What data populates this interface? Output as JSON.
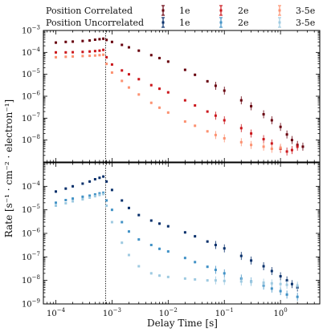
{
  "chart_data": {
    "type": "scatter",
    "xlabel": "Delay Time [s]",
    "ylabel": "Rate [s⁻¹ · cm⁻² · electron⁻¹]",
    "x_scale": "log",
    "y_scale": "log",
    "xlim": [
      6e-05,
      5
    ],
    "vline_x": 0.00077,
    "legend": {
      "placement": "top",
      "row_labels": [
        "Position Correlated",
        "Position Uncorrelated"
      ],
      "column_labels": [
        "1e",
        "2e",
        "3-5e"
      ]
    },
    "x_ticks": [
      {
        "value": 0.0001,
        "base": "10",
        "exp": "−4"
      },
      {
        "value": 0.001,
        "base": "10",
        "exp": "−3"
      },
      {
        "value": 0.01,
        "base": "10",
        "exp": "−2"
      },
      {
        "value": 0.1,
        "base": "10",
        "exp": "−1"
      },
      {
        "value": 1,
        "base": "10",
        "exp": "0"
      }
    ],
    "panels": [
      {
        "name": "Position Correlated",
        "ylim": [
          1e-09,
          0.001
        ],
        "y_ticks": [
          {
            "value": 0.001,
            "base": "10",
            "exp": "−3"
          },
          {
            "value": 0.0001,
            "base": "10",
            "exp": "−4"
          },
          {
            "value": 1e-05,
            "base": "10",
            "exp": "−5"
          },
          {
            "value": 1e-06,
            "base": "10",
            "exp": "−6"
          },
          {
            "value": 1e-07,
            "base": "10",
            "exp": "−7"
          },
          {
            "value": 1e-08,
            "base": "10",
            "exp": "−8"
          }
        ],
        "series": [
          {
            "name": "1e",
            "color": "#67000d",
            "points": [
              [
                0.0001,
                0.00028
              ],
              [
                0.00015,
                0.0003
              ],
              [
                0.0002,
                0.00031
              ],
              [
                0.0003,
                0.00033
              ],
              [
                0.0004,
                0.00035
              ],
              [
                0.0005,
                0.00038
              ],
              [
                0.0006,
                0.0004
              ],
              [
                0.0007,
                0.00042
              ],
              [
                0.0008,
                0.00037
              ],
              [
                0.001,
                0.0003
              ],
              [
                0.0015,
                0.00022
              ],
              [
                0.002,
                0.00017
              ],
              [
                0.003,
                0.00012
              ],
              [
                0.005,
                7.5e-05
              ],
              [
                0.007,
                5.5e-05
              ],
              [
                0.01,
                3.8e-05
              ],
              [
                0.02,
                1.6e-05
              ],
              [
                0.03,
                9.5e-06
              ],
              [
                0.05,
                4.8e-06
              ],
              [
                0.07,
                3e-06
              ],
              [
                0.1,
                1.8e-06
              ],
              [
                0.2,
                6.5e-07
              ],
              [
                0.3,
                3.5e-07
              ],
              [
                0.5,
                1.5e-07
              ],
              [
                0.7,
                8e-08
              ],
              [
                1.0,
                4e-08
              ],
              [
                1.3,
                1.8e-08
              ],
              [
                1.6,
                1e-08
              ],
              [
                2.0,
                6e-09
              ],
              [
                2.5,
                5e-09
              ]
            ]
          },
          {
            "name": "2e",
            "color": "#cb181d",
            "points": [
              [
                0.0001,
                0.0001
              ],
              [
                0.00015,
                0.0001
              ],
              [
                0.0002,
                0.000102
              ],
              [
                0.0003,
                0.000105
              ],
              [
                0.0004,
                0.00011
              ],
              [
                0.0005,
                0.000115
              ],
              [
                0.0006,
                0.00012
              ],
              [
                0.0007,
                0.00013
              ],
              [
                0.0008,
                6e-05
              ],
              [
                0.001,
                2.8e-05
              ],
              [
                0.0015,
                1.5e-05
              ],
              [
                0.002,
                1e-05
              ],
              [
                0.003,
                6e-06
              ],
              [
                0.005,
                3.2e-06
              ],
              [
                0.007,
                2.2e-06
              ],
              [
                0.01,
                1.5e-06
              ],
              [
                0.02,
                6.5e-07
              ],
              [
                0.03,
                3.8e-07
              ],
              [
                0.05,
                2e-07
              ],
              [
                0.07,
                1.3e-07
              ],
              [
                0.1,
                8e-08
              ],
              [
                0.2,
                3.5e-08
              ],
              [
                0.3,
                2e-08
              ],
              [
                0.5,
                1.1e-08
              ],
              [
                0.7,
                7e-09
              ],
              [
                1.0,
                4e-09
              ],
              [
                1.3,
                3e-09
              ],
              [
                1.6,
                3.5e-09
              ],
              [
                2.0,
                5e-09
              ]
            ]
          },
          {
            "name": "3-5e",
            "color": "#fc9272",
            "points": [
              [
                0.0001,
                6e-05
              ],
              [
                0.00015,
                6.3e-05
              ],
              [
                0.0002,
                6.5e-05
              ],
              [
                0.0003,
                6.8e-05
              ],
              [
                0.0004,
                7e-05
              ],
              [
                0.0005,
                7.2e-05
              ],
              [
                0.0006,
                7.5e-05
              ],
              [
                0.0007,
                7.8e-05
              ],
              [
                0.0008,
                3e-05
              ],
              [
                0.001,
                1.2e-05
              ],
              [
                0.0015,
                5e-06
              ],
              [
                0.002,
                2.5e-06
              ],
              [
                0.003,
                1.2e-06
              ],
              [
                0.005,
                5e-07
              ],
              [
                0.007,
                3e-07
              ],
              [
                0.01,
                1.8e-07
              ],
              [
                0.02,
                7e-08
              ],
              [
                0.03,
                4.5e-08
              ],
              [
                0.05,
                2.5e-08
              ],
              [
                0.07,
                1.7e-08
              ],
              [
                0.1,
                1.2e-08
              ],
              [
                0.2,
                8e-09
              ],
              [
                0.3,
                6e-09
              ],
              [
                0.5,
                5e-09
              ],
              [
                0.7,
                4e-09
              ],
              [
                1.0,
                4.5e-09
              ]
            ]
          }
        ]
      },
      {
        "name": "Position Uncorrelated",
        "ylim": [
          1e-09,
          0.001
        ],
        "y_ticks": [
          {
            "value": 0.0001,
            "base": "10",
            "exp": "−4"
          },
          {
            "value": 1e-05,
            "base": "10",
            "exp": "−5"
          },
          {
            "value": 1e-06,
            "base": "10",
            "exp": "−6"
          },
          {
            "value": 1e-07,
            "base": "10",
            "exp": "−7"
          },
          {
            "value": 1e-08,
            "base": "10",
            "exp": "−8"
          },
          {
            "value": 1e-09,
            "base": "10",
            "exp": "−9"
          }
        ],
        "series": [
          {
            "name": "1e",
            "color": "#08306b",
            "points": [
              [
                0.0001,
                6e-05
              ],
              [
                0.00015,
                8e-05
              ],
              [
                0.0002,
                0.0001
              ],
              [
                0.0003,
                0.00013
              ],
              [
                0.0004,
                0.00016
              ],
              [
                0.0005,
                0.0002
              ],
              [
                0.0006,
                0.00023
              ],
              [
                0.0007,
                0.00026
              ],
              [
                0.0008,
                0.00016
              ],
              [
                0.001,
                7e-05
              ],
              [
                0.0015,
                2.5e-05
              ],
              [
                0.002,
                1.2e-05
              ],
              [
                0.003,
                6e-06
              ],
              [
                0.005,
                3.5e-06
              ],
              [
                0.007,
                2.6e-06
              ],
              [
                0.01,
                2e-06
              ],
              [
                0.02,
                1.1e-06
              ],
              [
                0.03,
                7.5e-07
              ],
              [
                0.05,
                4.5e-07
              ],
              [
                0.07,
                3.2e-07
              ],
              [
                0.1,
                2.3e-07
              ],
              [
                0.2,
                1.1e-07
              ],
              [
                0.3,
                7e-08
              ],
              [
                0.5,
                4e-08
              ],
              [
                0.7,
                2.5e-08
              ],
              [
                1.0,
                1.5e-08
              ],
              [
                1.3,
                1e-08
              ],
              [
                1.6,
                7e-09
              ],
              [
                2.0,
                5e-09
              ]
            ]
          },
          {
            "name": "2e",
            "color": "#4292c6",
            "points": [
              [
                0.0001,
                2e-05
              ],
              [
                0.00015,
                2.6e-05
              ],
              [
                0.0002,
                3e-05
              ],
              [
                0.0003,
                3.6e-05
              ],
              [
                0.0004,
                4e-05
              ],
              [
                0.0005,
                4.5e-05
              ],
              [
                0.0006,
                5e-05
              ],
              [
                0.0007,
                5.3e-05
              ],
              [
                0.0008,
                2.5e-05
              ],
              [
                0.001,
                1e-05
              ],
              [
                0.0015,
                3e-06
              ],
              [
                0.002,
                1.2e-06
              ],
              [
                0.003,
                5.5e-07
              ],
              [
                0.005,
                3.2e-07
              ],
              [
                0.007,
                2.2e-07
              ],
              [
                0.01,
                1.7e-07
              ],
              [
                0.02,
                9e-08
              ],
              [
                0.03,
                6e-08
              ],
              [
                0.05,
                3.8e-08
              ],
              [
                0.07,
                2.8e-08
              ],
              [
                0.1,
                2e-08
              ],
              [
                0.2,
                1.2e-08
              ],
              [
                0.3,
                9e-09
              ],
              [
                0.5,
                6e-09
              ],
              [
                0.7,
                4.5e-09
              ],
              [
                1.0,
                3.5e-09
              ],
              [
                1.3,
                2.5e-09
              ],
              [
                2.0,
                2e-09
              ]
            ]
          },
          {
            "name": "3-5e",
            "color": "#9ecae1",
            "points": [
              [
                0.0001,
                1.5e-05
              ],
              [
                0.00015,
                1.9e-05
              ],
              [
                0.0002,
                2.3e-05
              ],
              [
                0.0003,
                2.8e-05
              ],
              [
                0.0004,
                3.3e-05
              ],
              [
                0.0005,
                3.8e-05
              ],
              [
                0.0006,
                4.3e-05
              ],
              [
                0.0007,
                4.7e-05
              ],
              [
                0.0008,
                1.5e-05
              ],
              [
                0.001,
                3e-06
              ],
              [
                0.0015,
                4e-07
              ],
              [
                0.002,
                1.2e-07
              ],
              [
                0.003,
                4e-08
              ],
              [
                0.005,
                2e-08
              ],
              [
                0.007,
                1.6e-08
              ],
              [
                0.01,
                1.4e-08
              ],
              [
                0.02,
                1.2e-08
              ],
              [
                0.03,
                1.1e-08
              ],
              [
                0.05,
                1e-08
              ],
              [
                0.07,
                1e-08
              ],
              [
                0.1,
                9.5e-09
              ],
              [
                0.2,
                9e-09
              ],
              [
                0.3,
                8.5e-09
              ],
              [
                0.5,
                8e-09
              ],
              [
                0.7,
                7.5e-09
              ],
              [
                1.0,
                7e-09
              ],
              [
                1.3,
                6.5e-09
              ],
              [
                2.0,
                6e-09
              ]
            ]
          }
        ]
      }
    ]
  }
}
